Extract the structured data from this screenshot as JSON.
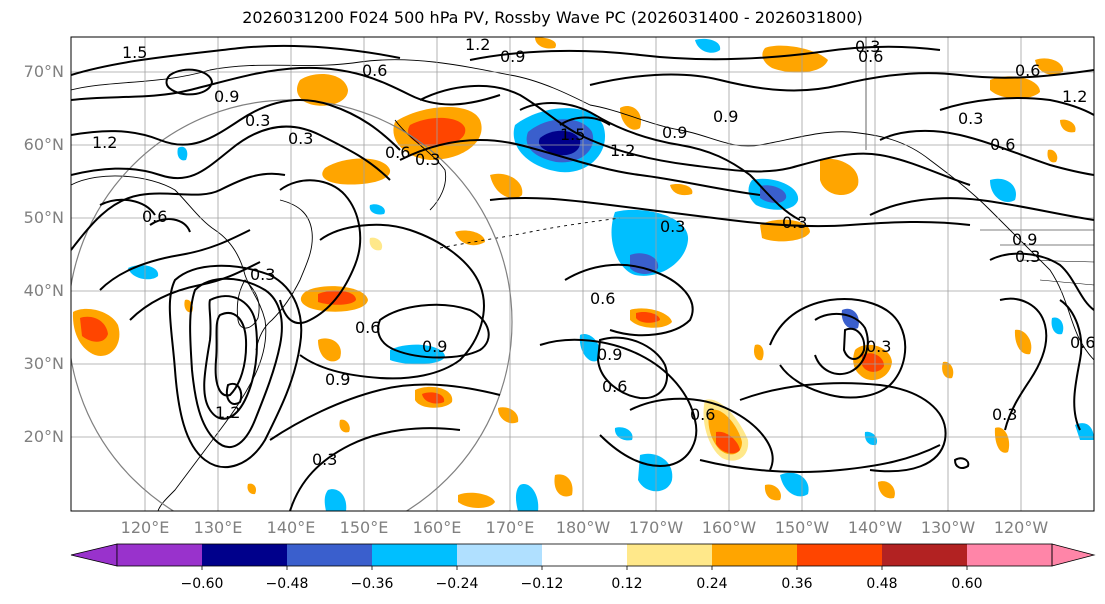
{
  "title": "2026031200 F024 500 hPa PV, Rossby Wave PC (2026031400 - 2026031800)",
  "lat_labels": [
    "70°N",
    "60°N",
    "50°N",
    "40°N",
    "30°N",
    "20°N"
  ],
  "lon_labels": [
    "120°E",
    "130°E",
    "140°E",
    "150°E",
    "160°E",
    "170°E",
    "180°W",
    "170°W",
    "160°W",
    "150°W",
    "140°W",
    "130°W",
    "120°W"
  ],
  "contour_labels": [
    "1.5",
    "0.6",
    "0.9",
    "1.2",
    "0.3",
    "0.3",
    "1.2",
    "0.9",
    "0.6",
    "0.3",
    "0.6",
    "0.3",
    "0.6",
    "0.9",
    "1.2",
    "0.9",
    "0.3",
    "1.2",
    "1.5",
    "0.9",
    "0.6",
    "0.9",
    "0.6",
    "0.3",
    "0.6",
    "0.9",
    "0.6",
    "0.3",
    "0.3",
    "0.3",
    "0.6",
    "0.3",
    "1.2",
    "0.6",
    "0.9",
    "0.6",
    "0.3",
    "0.3"
  ],
  "colorbar": {
    "ticks": [
      "−0.60",
      "−0.48",
      "−0.36",
      "−0.24",
      "−0.12",
      "0.12",
      "0.24",
      "0.36",
      "0.48",
      "0.60"
    ],
    "colors": [
      "#9932cc",
      "#00008b",
      "#3a5fcd",
      "#00bfff",
      "#b0e0ff",
      "#ffffff",
      "#ffe88a",
      "#ffa500",
      "#ff4500",
      "#b22222",
      "#ff85a8"
    ]
  }
}
